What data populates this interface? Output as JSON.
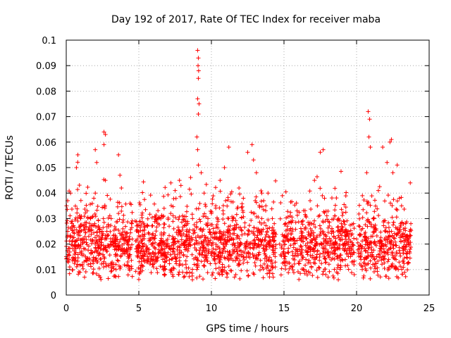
{
  "chart_data": {
    "type": "scatter",
    "title": "Day 192 of 2017, Rate Of TEC Index for receiver maba",
    "xlabel": "GPS time / hours",
    "ylabel": "ROTI / TECUs",
    "xlim": [
      0,
      25
    ],
    "ylim": [
      0,
      0.1
    ],
    "xticks": [
      0,
      5,
      10,
      15,
      20,
      25
    ],
    "yticks": [
      0,
      0.01,
      0.02,
      0.03,
      0.04,
      0.05,
      0.06,
      0.07,
      0.08,
      0.09,
      0.1
    ],
    "xtick_labels": [
      "0",
      "5",
      "10",
      "15",
      "20",
      "25"
    ],
    "ytick_labels": [
      "0",
      "0.01",
      "0.02",
      "0.03",
      "0.04",
      "0.05",
      "0.06",
      "0.07",
      "0.08",
      "0.09",
      "0.1"
    ],
    "grid": true,
    "marker": "+",
    "color": "#ff0000",
    "x_range_of_data": [
      0.0,
      23.75
    ],
    "points": [
      [
        0.1,
        0.037
      ],
      [
        0.1,
        0.025
      ],
      [
        0.2,
        0.014
      ],
      [
        0.3,
        0.04
      ],
      [
        0.4,
        0.021
      ],
      [
        0.6,
        0.016
      ],
      [
        0.8,
        0.055
      ],
      [
        0.7,
        0.05
      ],
      [
        1.0,
        0.03
      ],
      [
        1.1,
        0.012
      ],
      [
        1.3,
        0.018
      ],
      [
        1.6,
        0.026
      ],
      [
        1.9,
        0.038
      ],
      [
        2.0,
        0.057
      ],
      [
        2.1,
        0.052
      ],
      [
        2.0,
        0.04
      ],
      [
        2.2,
        0.02
      ],
      [
        2.6,
        0.064
      ],
      [
        2.7,
        0.063
      ],
      [
        2.6,
        0.059
      ],
      [
        2.7,
        0.045
      ],
      [
        2.8,
        0.025
      ],
      [
        3.1,
        0.03
      ],
      [
        3.3,
        0.022
      ],
      [
        3.6,
        0.055
      ],
      [
        3.7,
        0.047
      ],
      [
        3.8,
        0.042
      ],
      [
        3.6,
        0.032
      ],
      [
        4.0,
        0.018
      ],
      [
        4.4,
        0.036
      ],
      [
        4.5,
        0.028
      ],
      [
        4.9,
        0.022
      ],
      [
        5.3,
        0.015
      ],
      [
        5.6,
        0.027
      ],
      [
        6.0,
        0.011
      ],
      [
        6.3,
        0.03
      ],
      [
        6.8,
        0.008
      ],
      [
        7.2,
        0.032
      ],
      [
        7.5,
        0.041
      ],
      [
        7.8,
        0.045
      ],
      [
        7.9,
        0.043
      ],
      [
        8.1,
        0.007
      ],
      [
        8.4,
        0.02
      ],
      [
        8.7,
        0.03
      ],
      [
        9.05,
        0.096
      ],
      [
        9.1,
        0.093
      ],
      [
        9.08,
        0.09
      ],
      [
        9.12,
        0.088
      ],
      [
        9.1,
        0.085
      ],
      [
        9.05,
        0.077
      ],
      [
        9.15,
        0.075
      ],
      [
        9.1,
        0.071
      ],
      [
        9.0,
        0.062
      ],
      [
        9.05,
        0.057
      ],
      [
        9.1,
        0.051
      ],
      [
        9.3,
        0.048
      ],
      [
        9.5,
        0.04
      ],
      [
        9.7,
        0.02
      ],
      [
        10.0,
        0.032
      ],
      [
        10.3,
        0.035
      ],
      [
        10.6,
        0.045
      ],
      [
        10.9,
        0.05
      ],
      [
        11.2,
        0.058
      ],
      [
        11.5,
        0.03
      ],
      [
        11.9,
        0.042
      ],
      [
        12.2,
        0.038
      ],
      [
        12.5,
        0.056
      ],
      [
        12.8,
        0.059
      ],
      [
        12.9,
        0.053
      ],
      [
        13.1,
        0.048
      ],
      [
        13.3,
        0.025
      ],
      [
        13.6,
        0.037
      ],
      [
        13.9,
        0.04
      ],
      [
        14.2,
        0.03
      ],
      [
        14.4,
        0.011
      ],
      [
        14.7,
        0.02
      ],
      [
        15.1,
        0.028
      ],
      [
        15.5,
        0.024
      ],
      [
        15.9,
        0.033
      ],
      [
        16.2,
        0.019
      ],
      [
        16.5,
        0.031
      ],
      [
        16.8,
        0.037
      ],
      [
        17.1,
        0.045
      ],
      [
        17.5,
        0.056
      ],
      [
        17.7,
        0.057
      ],
      [
        17.3,
        0.035
      ],
      [
        17.9,
        0.022
      ],
      [
        18.3,
        0.025
      ],
      [
        18.7,
        0.018
      ],
      [
        19.1,
        0.029
      ],
      [
        19.4,
        0.018
      ],
      [
        19.7,
        0.024
      ],
      [
        20.0,
        0.022
      ],
      [
        20.4,
        0.039
      ],
      [
        20.7,
        0.048
      ],
      [
        20.8,
        0.072
      ],
      [
        20.9,
        0.069
      ],
      [
        20.85,
        0.062
      ],
      [
        20.95,
        0.058
      ],
      [
        21.2,
        0.03
      ],
      [
        21.5,
        0.041
      ],
      [
        21.8,
        0.058
      ],
      [
        22.1,
        0.052
      ],
      [
        22.3,
        0.06
      ],
      [
        22.4,
        0.061
      ],
      [
        22.5,
        0.048
      ],
      [
        22.8,
        0.051
      ],
      [
        23.1,
        0.035
      ],
      [
        23.5,
        0.017
      ],
      [
        23.7,
        0.044
      ]
    ]
  }
}
